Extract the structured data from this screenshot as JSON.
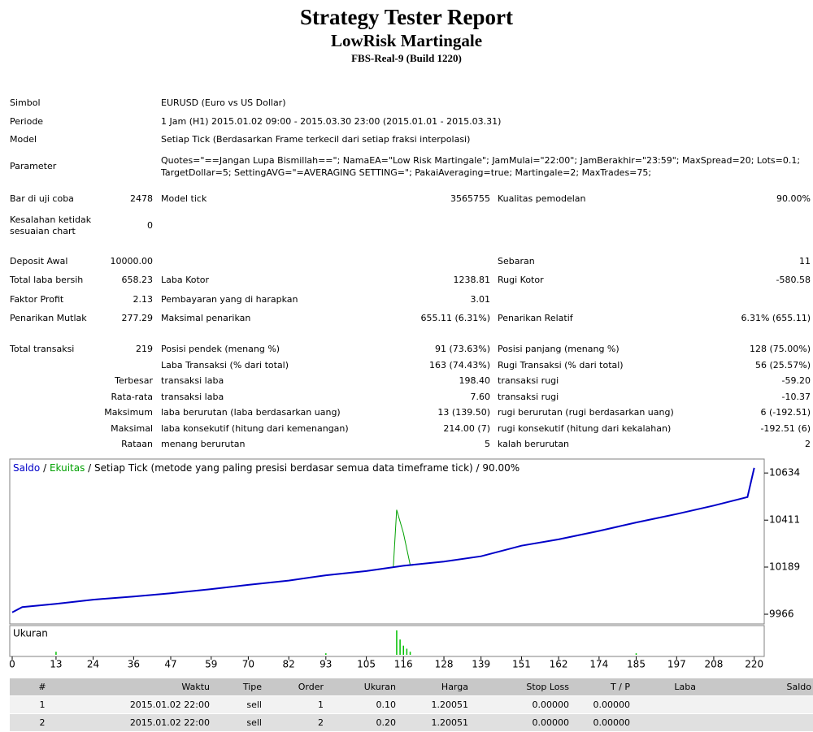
{
  "header": {
    "title": "Strategy Tester Report",
    "subtitle": "LowRisk Martingale",
    "server": "FBS-Real-9 (Build 1220)"
  },
  "info": [
    {
      "label": "Simbol",
      "value": "EURUSD (Euro vs US Dollar)"
    },
    {
      "label": "Periode",
      "value": "1 Jam (H1) 2015.01.02 09:00 - 2015.03.30 23:00 (2015.01.01 - 2015.03.31)"
    },
    {
      "label": "Model",
      "value": "Setiap Tick (Berdasarkan Frame terkecil dari setiap fraksi interpolasi)"
    },
    {
      "label": "Parameter",
      "value": "Quotes=\"==Jangan Lupa Bismillah==\"; NamaEA=\"Low Risk Martingale\"; JamMulai=\"22:00\"; JamBerakhir=\"23:59\"; MaxSpread=20; Lots=0.1; TargetDollar=5; SettingAVG=\"=AVERAGING SETTING=\"; PakaiAveraging=true; Martingale=2; MaxTrades=75;"
    }
  ],
  "stats": [
    [
      "Bar di uji coba",
      "2478",
      "Model tick",
      "3565755",
      "Kualitas pemodelan",
      "90.00%"
    ],
    [
      "Kesalahan ketidak sesuaian chart",
      "0",
      null,
      null,
      null,
      null
    ],
    [
      "Deposit Awal",
      "10000.00",
      null,
      null,
      "Sebaran",
      "11"
    ],
    [
      "Total laba bersih",
      "658.23",
      "Laba Kotor",
      "1238.81",
      "Rugi Kotor",
      "-580.58"
    ],
    [
      "Faktor Profit",
      "2.13",
      "Pembayaran yang di harapkan",
      "3.01",
      null,
      null
    ],
    [
      "Penarikan Mutlak",
      "277.29",
      "Maksimal penarikan",
      "655.11 (6.31%)",
      "Penarikan Relatif",
      "6.31% (655.11)"
    ],
    [
      "Total transaksi",
      "219",
      "Posisi pendek (menang %)",
      "91 (73.63%)",
      "Posisi panjang (menang %)",
      "128 (75.00%)"
    ],
    [
      null,
      null,
      "Laba Transaksi (% dari total)",
      "163 (74.43%)",
      "Rugi Transaksi (% dari total)",
      "56 (25.57%)"
    ],
    [
      null,
      "Terbesar",
      "transaksi laba",
      "198.40",
      "transaksi rugi",
      "-59.20"
    ],
    [
      null,
      "Rata-rata",
      "transaksi laba",
      "7.60",
      "transaksi rugi",
      "-10.37"
    ],
    [
      null,
      "Maksimum",
      "laba berurutan (laba berdasarkan uang)",
      "13 (139.50)",
      "rugi berurutan (rugi berdasarkan uang)",
      "6 (-192.51)"
    ],
    [
      null,
      "Maksimal",
      "laba konsekutif (hitung dari kemenangan)",
      "214.00 (7)",
      "rugi konsekutif (hitung dari kekalahan)",
      "-192.51 (6)"
    ],
    [
      null,
      "Rataan",
      "menang berurutan",
      "5",
      "kalah berurutan",
      "2"
    ]
  ],
  "chart_data": {
    "type": "line",
    "legend": [
      "Saldo",
      " / ",
      "Ekuitas",
      " / Setiap Tick (metode yang paling presisi berdasar semua data timeframe tick) / 90.00%"
    ],
    "volume_label": "Ukuran",
    "xlim": [
      0,
      222
    ],
    "xticks": [
      0,
      13,
      24,
      36,
      47,
      59,
      70,
      82,
      93,
      105,
      116,
      128,
      139,
      151,
      162,
      174,
      185,
      197,
      208,
      220
    ],
    "ylim": [
      9920,
      10700
    ],
    "yticks": [
      10634,
      10411,
      10189,
      9966
    ],
    "series": [
      {
        "name": "Saldo",
        "color": "#0000c8",
        "x": [
          0,
          3,
          13,
          24,
          36,
          47,
          59,
          70,
          82,
          93,
          105,
          116,
          128,
          139,
          151,
          162,
          174,
          185,
          197,
          208,
          218,
          220
        ],
        "values": [
          9975,
          10000,
          10015,
          10035,
          10050,
          10065,
          10085,
          10105,
          10125,
          10150,
          10170,
          10195,
          10215,
          10240,
          10290,
          10320,
          10360,
          10400,
          10440,
          10480,
          10520,
          10658
        ]
      },
      {
        "name": "Ekuitas",
        "color": "#00a000",
        "x": [
          113,
          114,
          116,
          118
        ],
        "values": [
          10190,
          10460,
          10350,
          10200
        ]
      }
    ],
    "volume": {
      "color": "#00c000",
      "ylim": [
        0,
        1.7
      ],
      "x": [
        13,
        93,
        114,
        115,
        116,
        117,
        118,
        185
      ],
      "values": [
        0.2,
        0.1,
        1.6,
        1.0,
        0.6,
        0.4,
        0.2,
        0.1
      ]
    }
  },
  "trades": {
    "columns": [
      "#",
      "Waktu",
      "Tipe",
      "Order",
      "Ukuran",
      "Harga",
      "Stop Loss",
      "T / P",
      "Laba",
      "Saldo"
    ],
    "rows": [
      [
        "1",
        "2015.01.02 22:00",
        "sell",
        "1",
        "0.10",
        "1.20051",
        "0.00000",
        "0.00000"
      ],
      [
        "2",
        "2015.01.02 22:00",
        "sell",
        "2",
        "0.20",
        "1.20051",
        "0.00000",
        "0.00000"
      ]
    ]
  }
}
